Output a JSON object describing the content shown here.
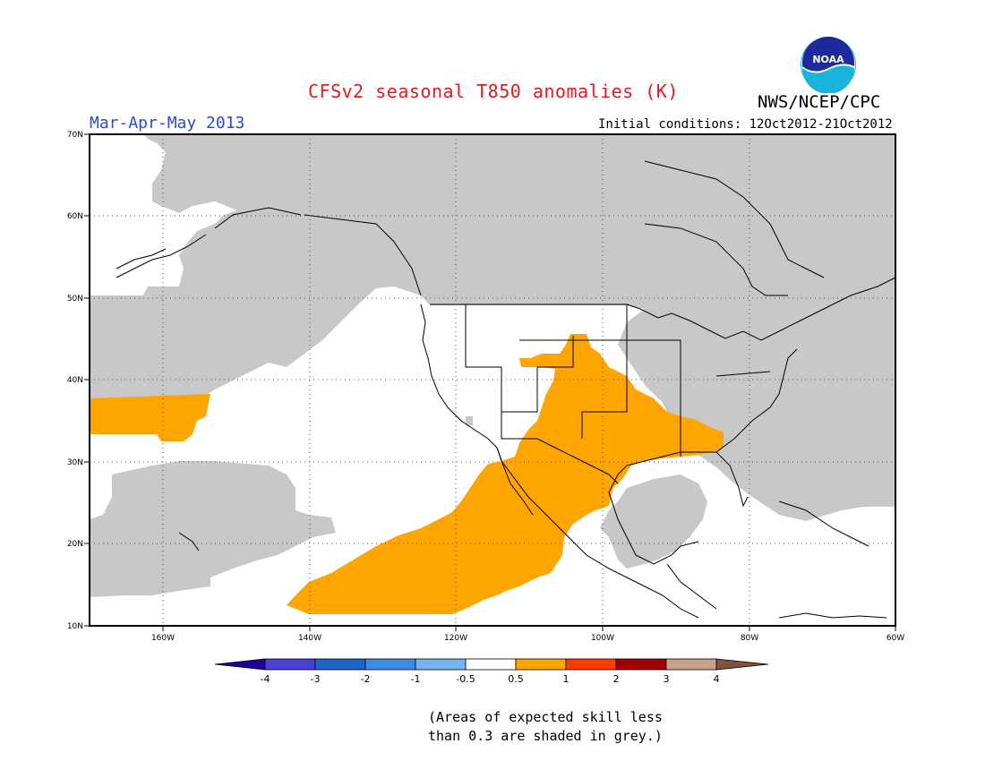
{
  "header": {
    "title": "CFSv2 seasonal T850 anomalies (K)",
    "agency": "NWS/NCEP/CPC",
    "season": "Mar-Apr-May 2013",
    "initial_conditions": "Initial conditions: 12Oct2012-21Oct2012",
    "logo_text": "NOAA"
  },
  "map": {
    "lon_labels": [
      "160W",
      "140W",
      "120W",
      "100W",
      "80W",
      "60W"
    ],
    "lat_labels": [
      "70N",
      "60N",
      "50N",
      "40N",
      "30N",
      "20N",
      "10N"
    ],
    "legend_shaded_colors": {
      "grey_low_skill": "#c8c8c8",
      "positive_anomaly_0_5_to_1": "#ffa500"
    }
  },
  "colorbar": {
    "tick_labels": [
      "-4",
      "-3",
      "-2",
      "-1",
      "-0.5",
      "0.5",
      "1",
      "2",
      "3",
      "4"
    ],
    "colors": [
      "#20009b",
      "#4b3fd4",
      "#1e64c8",
      "#3c8ce6",
      "#78b4f0",
      "#ffffff",
      "#ffa500",
      "#ff3c00",
      "#a00000",
      "#c8a08c",
      "#82503c"
    ]
  },
  "footnote": {
    "line1": "(Areas of expected skill less",
    "line2": "than 0.3 are shaded in grey.)"
  }
}
